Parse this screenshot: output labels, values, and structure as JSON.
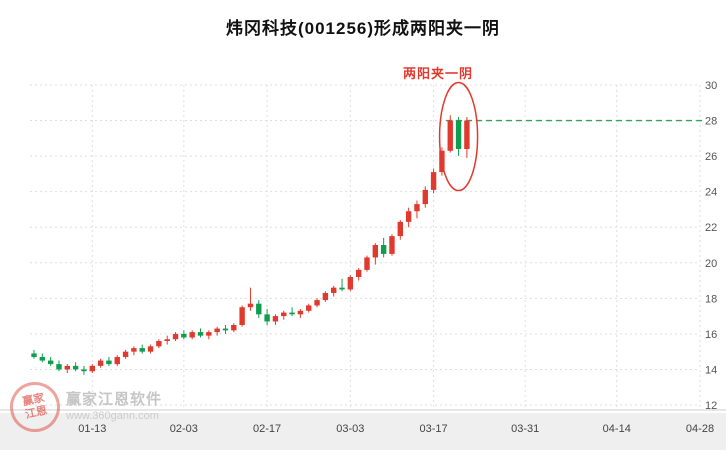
{
  "title": "炜冈科技(001256)形成两阳夹一阴",
  "annotation": {
    "label": "两阳夹一阴"
  },
  "watermark": {
    "logo_line1": "赢家",
    "logo_line2": "江恩",
    "brand": "赢家江恩软件",
    "url": "www.360gann.com"
  },
  "colors": {
    "up": "#e03a2f",
    "down": "#0f9e4e",
    "reference_line": "#3aa05a",
    "annotation": "#e03a2f",
    "grid": "#dedede",
    "axis_text": "#555555",
    "x_label_text": "#444444",
    "bottom_band": "#efefef",
    "axis_line": "#cccccc"
  },
  "chart_data": {
    "type": "candlestick",
    "title": "炜冈科技(001256)形成两阳夹一阴",
    "ylim": [
      12,
      30
    ],
    "y_ticks": [
      30,
      28,
      26,
      24,
      22,
      20,
      18,
      16,
      14,
      12
    ],
    "x_ticks": [
      {
        "label": "01-13",
        "slot": 7
      },
      {
        "label": "02-03",
        "slot": 18
      },
      {
        "label": "02-17",
        "slot": 28
      },
      {
        "label": "03-03",
        "slot": 38
      },
      {
        "label": "03-17",
        "slot": 48
      },
      {
        "label": "03-31",
        "slot": 59
      },
      {
        "label": "04-14",
        "slot": 70
      },
      {
        "label": "04-28",
        "slot": 80
      }
    ],
    "total_slots": 80,
    "grid": "dotted",
    "reference_line": 28,
    "pattern": {
      "label": "两阳夹一阴",
      "candles": [
        50,
        51,
        52
      ]
    },
    "candles": [
      [
        14.9,
        15.1,
        14.6,
        14.7
      ],
      [
        14.7,
        14.9,
        14.4,
        14.5
      ],
      [
        14.5,
        14.7,
        14.2,
        14.3
      ],
      [
        14.3,
        14.5,
        13.9,
        14.0
      ],
      [
        14.0,
        14.3,
        13.8,
        14.2
      ],
      [
        14.2,
        14.4,
        13.9,
        14.0
      ],
      [
        14.0,
        14.2,
        13.7,
        13.9
      ],
      [
        13.9,
        14.3,
        13.8,
        14.2
      ],
      [
        14.2,
        14.6,
        14.1,
        14.5
      ],
      [
        14.5,
        14.7,
        14.2,
        14.3
      ],
      [
        14.3,
        14.8,
        14.2,
        14.7
      ],
      [
        14.7,
        15.1,
        14.6,
        15.0
      ],
      [
        15.0,
        15.3,
        14.8,
        15.2
      ],
      [
        15.2,
        15.4,
        14.9,
        15.0
      ],
      [
        15.0,
        15.4,
        14.9,
        15.3
      ],
      [
        15.3,
        15.7,
        15.2,
        15.6
      ],
      [
        15.6,
        15.9,
        15.4,
        15.7
      ],
      [
        15.7,
        16.1,
        15.6,
        16.0
      ],
      [
        16.0,
        16.2,
        15.7,
        15.8
      ],
      [
        15.8,
        16.2,
        15.7,
        16.1
      ],
      [
        16.1,
        16.3,
        15.8,
        15.9
      ],
      [
        15.9,
        16.2,
        15.7,
        16.1
      ],
      [
        16.1,
        16.4,
        15.9,
        16.3
      ],
      [
        16.3,
        16.5,
        16.0,
        16.2
      ],
      [
        16.2,
        16.6,
        16.1,
        16.5
      ],
      [
        16.5,
        17.6,
        16.4,
        17.5
      ],
      [
        17.5,
        18.6,
        17.3,
        17.7
      ],
      [
        17.7,
        17.9,
        16.9,
        17.1
      ],
      [
        17.1,
        17.4,
        16.5,
        16.7
      ],
      [
        16.7,
        17.1,
        16.5,
        17.0
      ],
      [
        17.0,
        17.3,
        16.8,
        17.2
      ],
      [
        17.2,
        17.5,
        17.0,
        17.1
      ],
      [
        17.1,
        17.4,
        16.9,
        17.3
      ],
      [
        17.3,
        17.7,
        17.2,
        17.6
      ],
      [
        17.6,
        18.0,
        17.5,
        17.9
      ],
      [
        17.9,
        18.4,
        17.8,
        18.3
      ],
      [
        18.3,
        18.7,
        18.1,
        18.6
      ],
      [
        18.6,
        19.1,
        18.4,
        18.5
      ],
      [
        18.5,
        19.3,
        18.4,
        19.2
      ],
      [
        19.2,
        19.7,
        19.0,
        19.6
      ],
      [
        19.6,
        20.4,
        19.5,
        20.3
      ],
      [
        20.3,
        21.1,
        19.9,
        21.0
      ],
      [
        21.0,
        21.4,
        20.3,
        20.5
      ],
      [
        20.5,
        21.6,
        20.4,
        21.5
      ],
      [
        21.5,
        22.4,
        21.3,
        22.3
      ],
      [
        22.3,
        23.1,
        22.0,
        22.9
      ],
      [
        22.9,
        23.5,
        22.5,
        23.3
      ],
      [
        23.3,
        24.3,
        23.1,
        24.1
      ],
      [
        24.1,
        25.3,
        23.9,
        25.1
      ],
      [
        25.1,
        26.5,
        24.9,
        26.3
      ],
      [
        26.3,
        28.3,
        26.2,
        28.0
      ],
      [
        28.0,
        28.2,
        26.0,
        26.4
      ],
      [
        26.4,
        28.2,
        25.9,
        28.0
      ]
    ]
  }
}
